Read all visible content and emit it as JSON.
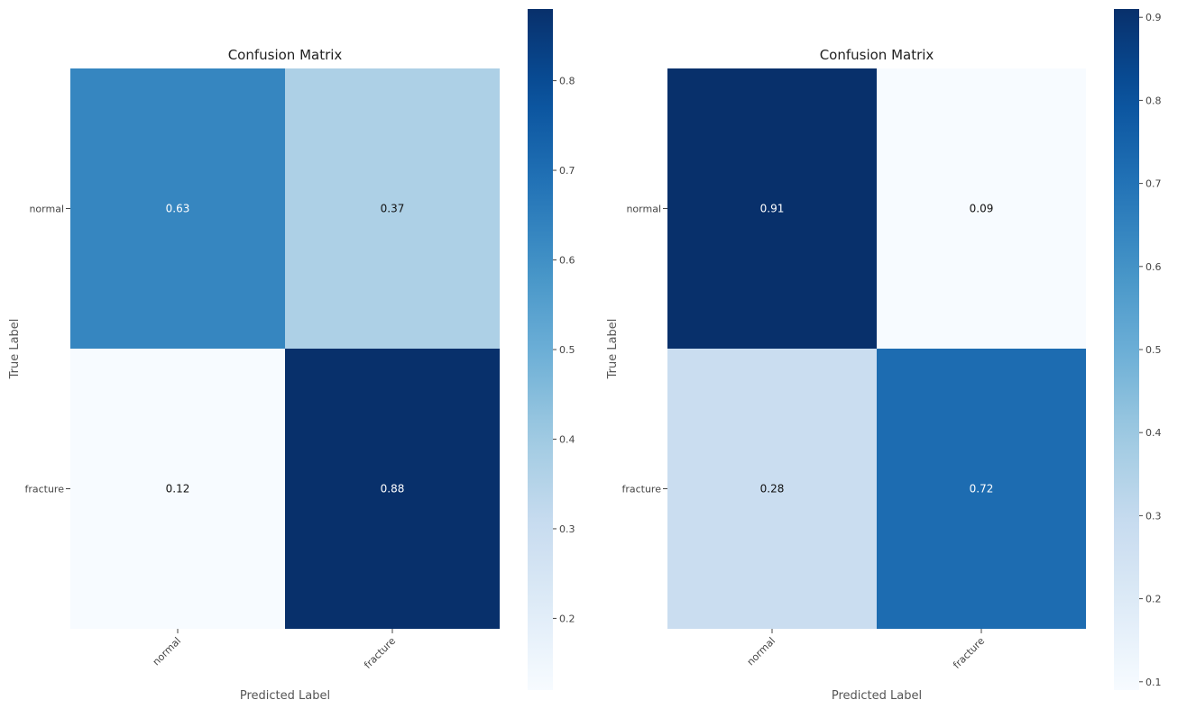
{
  "chart_data": [
    {
      "type": "heatmap",
      "title": "Confusion Matrix",
      "xlabel": "Predicted Label",
      "ylabel": "True Label",
      "x_categories": [
        "normal",
        "fracture"
      ],
      "y_categories": [
        "normal",
        "fracture"
      ],
      "values": [
        [
          0.63,
          0.37
        ],
        [
          0.12,
          0.88
        ]
      ],
      "value_labels": [
        [
          "0.63",
          "0.37"
        ],
        [
          "0.12",
          "0.88"
        ]
      ],
      "colormap": "Blues",
      "colorbar": {
        "range": [
          0.12,
          0.88
        ],
        "ticks": [
          "0.2",
          "0.3",
          "0.4",
          "0.5",
          "0.6",
          "0.7",
          "0.8"
        ],
        "tick_values": [
          0.2,
          0.3,
          0.4,
          0.5,
          0.6,
          0.7,
          0.8
        ]
      }
    },
    {
      "type": "heatmap",
      "title": "Confusion Matrix",
      "xlabel": "Predicted Label",
      "ylabel": "True Label",
      "x_categories": [
        "normal",
        "fracture"
      ],
      "y_categories": [
        "normal",
        "fracture"
      ],
      "values": [
        [
          0.91,
          0.09
        ],
        [
          0.28,
          0.72
        ]
      ],
      "value_labels": [
        [
          "0.91",
          "0.09"
        ],
        [
          "0.28",
          "0.72"
        ]
      ],
      "colormap": "Blues",
      "colorbar": {
        "range": [
          0.09,
          0.91
        ],
        "ticks": [
          "0.1",
          "0.2",
          "0.3",
          "0.4",
          "0.5",
          "0.6",
          "0.7",
          "0.8",
          "0.9"
        ],
        "tick_values": [
          0.1,
          0.2,
          0.3,
          0.4,
          0.5,
          0.6,
          0.7,
          0.8,
          0.9
        ]
      }
    }
  ]
}
